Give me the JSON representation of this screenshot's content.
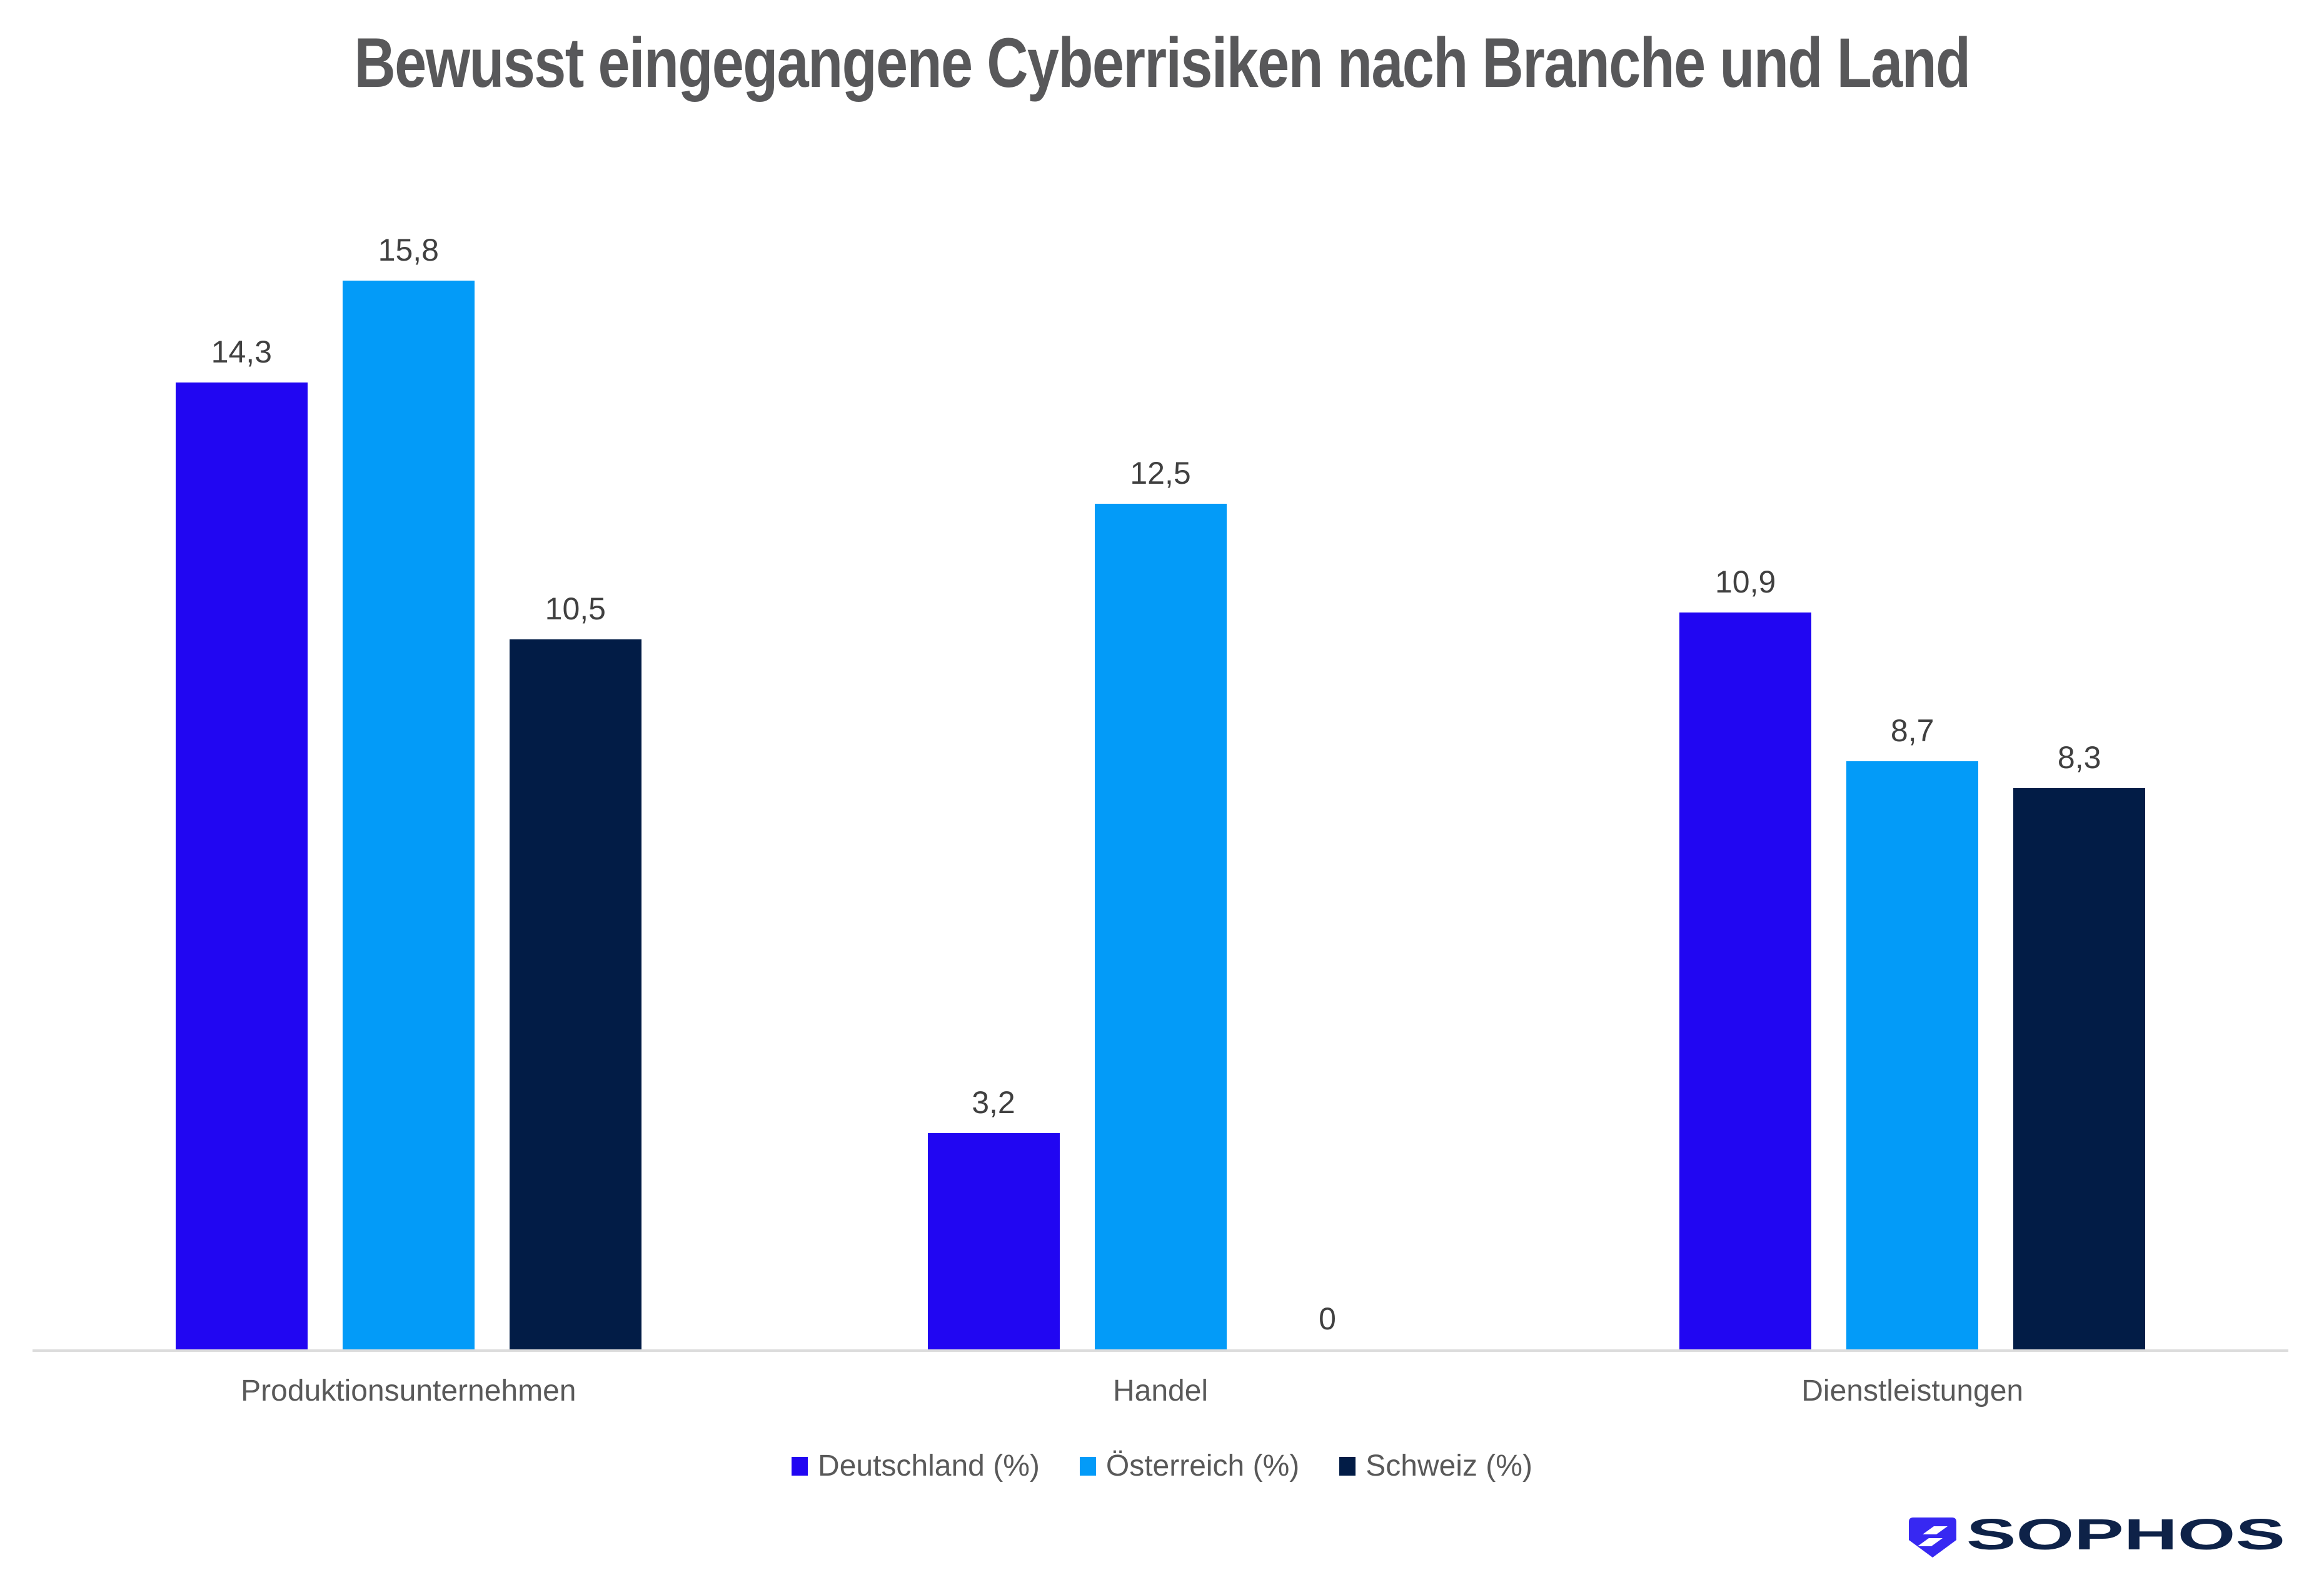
{
  "title": "Bewusst eingegangene Cyberrisiken nach Branche und Land",
  "chart_data": {
    "type": "bar",
    "title": "Bewusst eingegangene Cyberrisiken nach Branche und Land",
    "categories": [
      "Produktionsunternehmen",
      "Handel",
      "Dienstleistungen"
    ],
    "category_slugs": [
      "produktionsunternehmen",
      "handel",
      "dienstleistungen"
    ],
    "series": [
      {
        "name": "Deutschland (%)",
        "slug": "deutschland",
        "color": "#2106F2",
        "values": [
          14.3,
          3.2,
          10.9
        ],
        "labels": [
          "14,3",
          "3,2",
          "10,9"
        ]
      },
      {
        "name": "Österreich (%)",
        "slug": "oesterreich",
        "color": "#039BF8",
        "values": [
          15.8,
          12.5,
          8.7
        ],
        "labels": [
          "15,8",
          "12,5",
          "8,7"
        ]
      },
      {
        "name": "Schweiz (%)",
        "slug": "schweiz",
        "color": "#021C46",
        "values": [
          10.5,
          0,
          8.3
        ],
        "labels": [
          "10,5",
          "0",
          "8,3"
        ]
      }
    ],
    "ylabel": "",
    "xlabel": "",
    "ylim": [
      0,
      16.6
    ],
    "grid": false,
    "y_axis_visible": false,
    "value_labels_shown": true,
    "legend_position": "bottom"
  },
  "colors": {
    "axis_line": "#dcdcdc",
    "value_label": "#404040",
    "title_text": "#58585a",
    "axis_text": "#595959"
  },
  "branding": {
    "wordmark": "SOPHOS",
    "shield_color": "#3728F2",
    "wordmark_color": "#0E2248"
  }
}
